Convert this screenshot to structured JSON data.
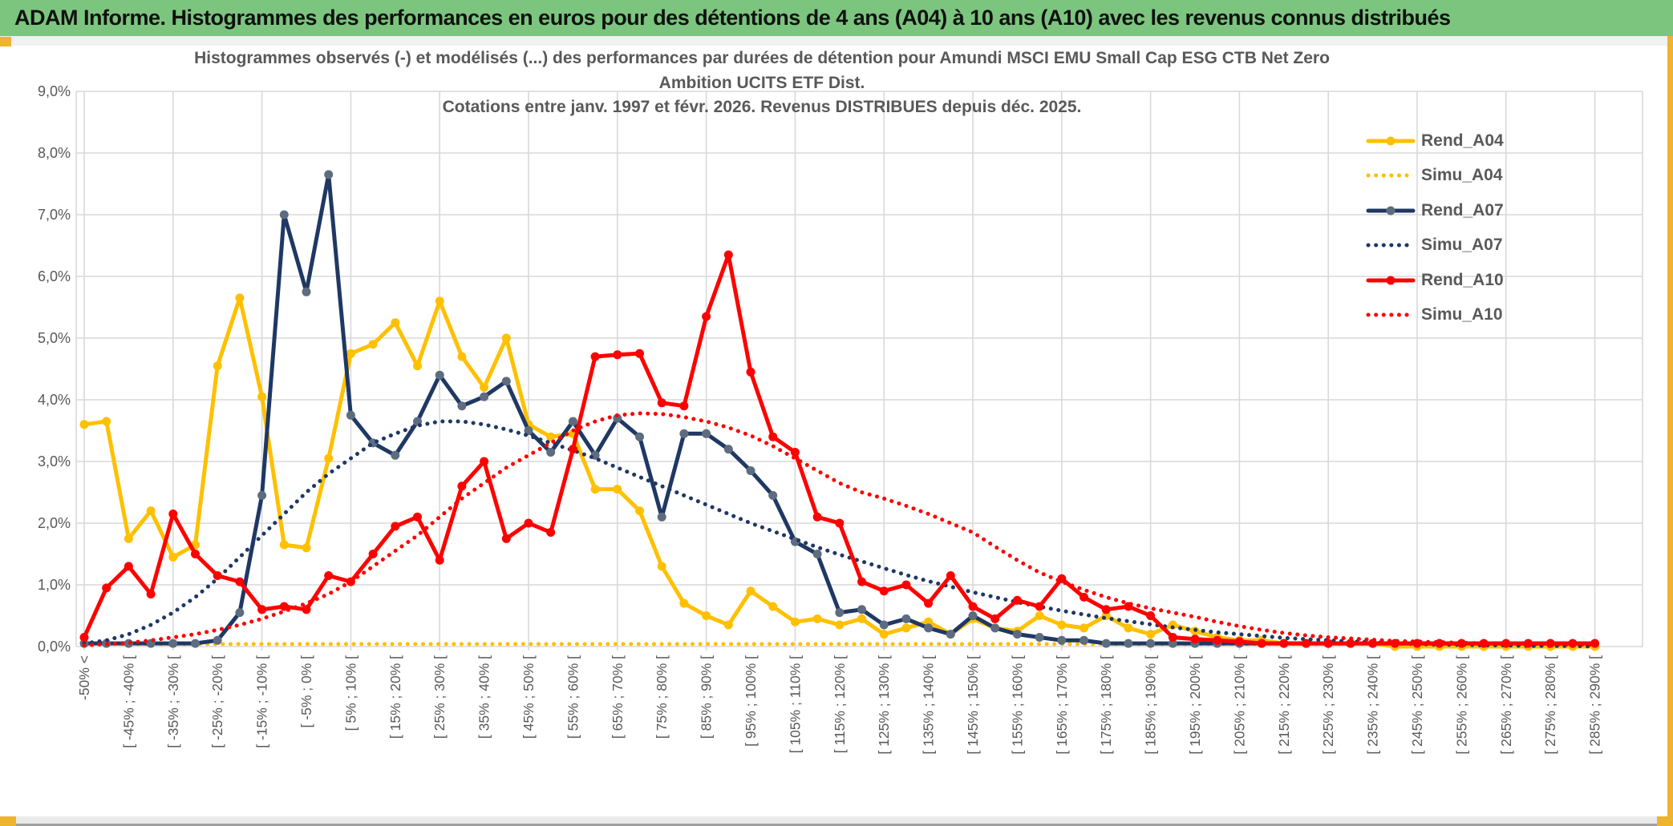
{
  "title_bar": {
    "text": "ADAM Informe. Histogrammes des performances en euros pour des détentions de 4 ans (A04) à 10 ans (A10) avec les revenus connus distribués"
  },
  "chart_data": {
    "type": "line",
    "title_lines": [
      "Histogrammes observés (-) et modélisés (...) des performances par durées de détention pour Amundi MSCI EMU Small Cap ESG CTB Net Zero",
      "Ambition UCITS ETF Dist.",
      "Cotations entre janv. 1997 et févr. 2026. Revenus DISTRIBUES depuis déc. 2025."
    ],
    "grid": true,
    "legend_position": "inside-right-top",
    "y_axis": {
      "min": 0,
      "max": 9,
      "tick_labels": [
        "9,0%",
        "8,0%",
        "7,0%",
        "6,0%",
        "5,0%",
        "4,0%",
        "3,0%",
        "2,0%",
        "1,0%",
        "0,0%"
      ]
    },
    "x_axis": {
      "n_points": 69,
      "points_per_tick": 2,
      "tick_labels": [
        "-50% <",
        "[ -45% ; -40% [",
        "[ -35% ; -30% [",
        "[ -25% ; -20% [",
        "[ -15% ; -10% [",
        "[ -5% ; 0% [",
        "[ 5% ; 10% [",
        "[ 15% ; 20% [",
        "[ 25% ; 30% [",
        "[ 35% ; 40% [",
        "[ 45% ; 50% [",
        "[ 55% ; 60% [",
        "[ 65% ; 70% [",
        "[ 75% ; 80% [",
        "[ 85% ; 90% [",
        "[ 95% ; 100% [",
        "[ 105% ; 110% [",
        "[ 115% ; 120% [",
        "[ 125% ; 130% [",
        "[ 135% ; 140% [",
        "[ 145% ; 150% [",
        "[ 155% ; 160% [",
        "[ 165% ; 170% [",
        "[ 175% ; 180% [",
        "[ 185% ; 190% [",
        "[ 195% ; 200% [",
        "[ 205% ; 210% [",
        "[ 215% ; 220% [",
        "[ 225% ; 230% [",
        "[ 235% ; 240% [",
        "[ 245% ; 250% [",
        "[ 255% ; 260% [",
        "[ 265% ; 270% [",
        "[ 275% ; 280% [",
        "[ 285% ; 290% ["
      ]
    },
    "series": [
      {
        "name": "Rend_A04",
        "color": "#FFC000",
        "style": "solid",
        "marker": true,
        "marker_color": "#FFC000",
        "values": [
          3.6,
          3.65,
          1.75,
          2.2,
          1.45,
          1.65,
          4.55,
          5.65,
          4.05,
          1.65,
          1.6,
          3.05,
          4.75,
          4.9,
          5.25,
          4.55,
          5.6,
          4.7,
          4.2,
          5.0,
          3.6,
          3.4,
          3.45,
          2.55,
          2.55,
          2.2,
          1.3,
          0.7,
          0.5,
          0.35,
          0.9,
          0.65,
          0.4,
          0.45,
          0.35,
          0.45,
          0.2,
          0.3,
          0.4,
          0.2,
          0.45,
          0.3,
          0.25,
          0.5,
          0.35,
          0.3,
          0.5,
          0.3,
          0.2,
          0.35,
          0.25,
          0.15,
          0.1,
          0.1,
          0.05,
          0.05,
          0.05,
          0.05,
          0.05,
          0,
          0,
          0,
          0,
          0,
          0,
          0,
          0,
          0,
          0
        ]
      },
      {
        "name": "Simu_A04",
        "color": "#FFC000",
        "style": "dotted",
        "marker": false,
        "values": [
          0.04,
          0.04,
          0.04,
          0.04,
          0.04,
          0.04,
          0.04,
          0.04,
          0.04,
          0.04,
          0.04,
          0.04,
          0.04,
          0.04,
          0.04,
          0.04,
          0.04,
          0.04,
          0.04,
          0.04,
          0.04,
          0.04,
          0.04,
          0.04,
          0.04,
          0.04,
          0.04,
          0.04,
          0.04,
          0.04,
          0.04,
          0.04,
          0.04,
          0.04,
          0.04,
          0.04,
          0.04,
          0.04,
          0.04,
          0.04,
          0.04,
          0.04,
          0.04,
          0.04,
          0.04,
          0.04,
          0.04,
          0.04,
          0.04,
          0.04,
          0.04,
          0.04,
          0.04,
          0.04,
          0.04,
          0.04,
          0.04,
          0.04,
          0.04,
          0.04,
          0.04,
          0.04,
          0.04,
          0.04,
          0.04,
          0.04,
          0.04,
          0.04,
          0.04
        ]
      },
      {
        "name": "Rend_A07",
        "color": "#1F3864",
        "style": "solid",
        "marker": true,
        "marker_color": "#5E6C80",
        "values": [
          0.05,
          0.05,
          0.05,
          0.05,
          0.05,
          0.05,
          0.1,
          0.55,
          2.45,
          7.0,
          5.75,
          7.65,
          3.75,
          3.3,
          3.1,
          3.65,
          4.4,
          3.9,
          4.05,
          4.3,
          3.5,
          3.15,
          3.65,
          3.1,
          3.7,
          3.4,
          2.1,
          3.45,
          3.45,
          3.2,
          2.85,
          2.45,
          1.7,
          1.5,
          0.55,
          0.6,
          0.35,
          0.45,
          0.3,
          0.2,
          0.5,
          0.3,
          0.2,
          0.15,
          0.1,
          0.1,
          0.05,
          0.05,
          0.05,
          0.05,
          0.05,
          0.05,
          0.05,
          0.05,
          0.05,
          0.05,
          0.05,
          0.05,
          0.05,
          0.05,
          0.05,
          0.05,
          0.05,
          0.05,
          0.05,
          0.05,
          0.05,
          0.05,
          0.05
        ]
      },
      {
        "name": "Simu_A07",
        "color": "#1F3864",
        "style": "dotted",
        "marker": false,
        "values": [
          0.05,
          0.1,
          0.2,
          0.35,
          0.55,
          0.8,
          1.1,
          1.45,
          1.8,
          2.15,
          2.5,
          2.8,
          3.05,
          3.3,
          3.45,
          3.58,
          3.65,
          3.65,
          3.6,
          3.52,
          3.42,
          3.3,
          3.18,
          3.05,
          2.9,
          2.75,
          2.6,
          2.45,
          2.3,
          2.15,
          2.0,
          1.87,
          1.74,
          1.61,
          1.49,
          1.38,
          1.27,
          1.16,
          1.06,
          0.97,
          0.88,
          0.8,
          0.72,
          0.65,
          0.58,
          0.52,
          0.46,
          0.41,
          0.36,
          0.31,
          0.27,
          0.23,
          0.2,
          0.17,
          0.14,
          0.12,
          0.1,
          0.08,
          0.07,
          0.05,
          0.04,
          0.03,
          0.03,
          0.02,
          0.02,
          0.01,
          0.01,
          0.01,
          0
        ]
      },
      {
        "name": "Rend_A10",
        "color": "#FF0000",
        "style": "solid",
        "marker": true,
        "marker_color": "#FF0000",
        "values": [
          0.15,
          0.95,
          1.3,
          0.85,
          2.15,
          1.5,
          1.15,
          1.05,
          0.6,
          0.65,
          0.6,
          1.15,
          1.05,
          1.5,
          1.95,
          2.1,
          1.4,
          2.6,
          3.0,
          1.75,
          2.0,
          1.85,
          3.2,
          4.7,
          4.73,
          4.75,
          3.95,
          3.9,
          5.35,
          6.35,
          4.45,
          3.4,
          3.15,
          2.1,
          2.0,
          1.05,
          0.9,
          1.0,
          0.7,
          1.15,
          0.65,
          0.45,
          0.75,
          0.65,
          1.1,
          0.8,
          0.6,
          0.65,
          0.5,
          0.15,
          0.12,
          0.1,
          0.08,
          0.05,
          0.05,
          0.05,
          0.05,
          0.05,
          0.05,
          0.05,
          0.05,
          0.05,
          0.05,
          0.05,
          0.05,
          0.05,
          0.05,
          0.05,
          0.05
        ]
      },
      {
        "name": "Simu_A10",
        "color": "#FF0000",
        "style": "dotted",
        "marker": false,
        "values": [
          0.02,
          0.04,
          0.06,
          0.1,
          0.15,
          0.2,
          0.27,
          0.35,
          0.45,
          0.57,
          0.7,
          0.85,
          1.05,
          1.3,
          1.55,
          1.8,
          2.1,
          2.4,
          2.65,
          2.9,
          3.1,
          3.3,
          3.5,
          3.65,
          3.75,
          3.78,
          3.77,
          3.72,
          3.65,
          3.55,
          3.42,
          3.25,
          3.05,
          2.85,
          2.65,
          2.5,
          2.4,
          2.28,
          2.15,
          2.0,
          1.85,
          1.62,
          1.4,
          1.2,
          1.05,
          0.92,
          0.8,
          0.7,
          0.62,
          0.55,
          0.48,
          0.4,
          0.33,
          0.27,
          0.22,
          0.18,
          0.15,
          0.13,
          0.11,
          0.09,
          0.08,
          0.07,
          0.06,
          0.05,
          0.05,
          0.04,
          0.04,
          0.03,
          0.03
        ]
      }
    ],
    "colors": {
      "grid": "#D9D9D9",
      "axis_text": "#595959",
      "plot_border": "#D9D9D9"
    }
  },
  "frame": {
    "green_bar": "#7CC57F",
    "yellow_accent": "#EDB42E",
    "bottom_strip": "#EAEAEA",
    "bottom_edge": "#A0A0A0"
  }
}
